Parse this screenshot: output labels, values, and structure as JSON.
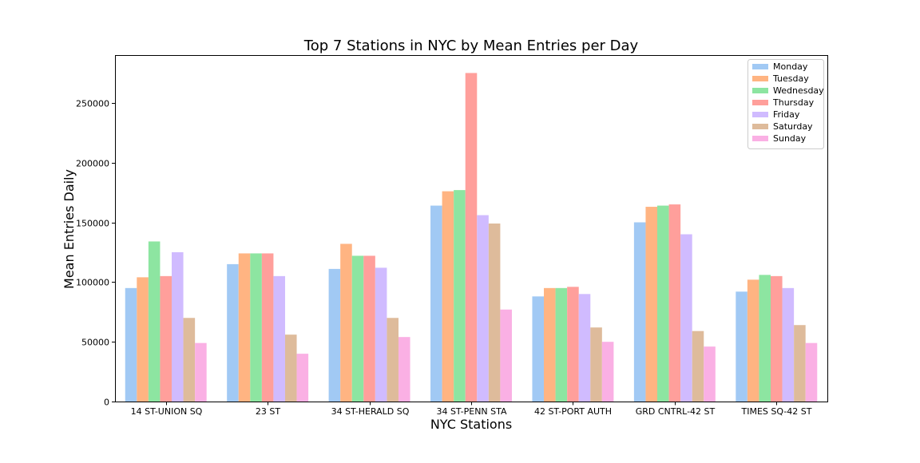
{
  "chart_data": {
    "type": "bar",
    "title": "Top 7 Stations in NYC by Mean Entries per Day",
    "xlabel": "NYC Stations",
    "ylabel": "Mean Entries Daily",
    "ylim": [
      0,
      290000
    ],
    "yticks": [
      0,
      50000,
      100000,
      150000,
      200000,
      250000
    ],
    "grid": false,
    "legend_position": "top-right",
    "categories": [
      "14 ST-UNION SQ",
      "23 ST",
      "34 ST-HERALD SQ",
      "34 ST-PENN STA",
      "42 ST-PORT AUTH",
      "GRD CNTRL-42 ST",
      "TIMES SQ-42 ST"
    ],
    "series": [
      {
        "name": "Monday",
        "color": "#a1c9f4",
        "values": [
          95000,
          115000,
          111000,
          164000,
          88000,
          150000,
          92000
        ]
      },
      {
        "name": "Tuesday",
        "color": "#ffb482",
        "values": [
          104000,
          124000,
          132000,
          176000,
          95000,
          163000,
          102000
        ]
      },
      {
        "name": "Wednesday",
        "color": "#8de5a1",
        "values": [
          134000,
          124000,
          122000,
          177000,
          95000,
          164000,
          106000
        ]
      },
      {
        "name": "Thursday",
        "color": "#ff9f9b",
        "values": [
          105000,
          124000,
          122000,
          275000,
          96000,
          165000,
          105000
        ]
      },
      {
        "name": "Friday",
        "color": "#d0bbff",
        "values": [
          125000,
          105000,
          112000,
          156000,
          90000,
          140000,
          95000
        ]
      },
      {
        "name": "Saturday",
        "color": "#debb9b",
        "values": [
          70000,
          56000,
          70000,
          149000,
          62000,
          59000,
          64000
        ]
      },
      {
        "name": "Sunday",
        "color": "#fab0e4",
        "values": [
          49000,
          40000,
          54000,
          77000,
          50000,
          46000,
          49000
        ]
      }
    ]
  }
}
